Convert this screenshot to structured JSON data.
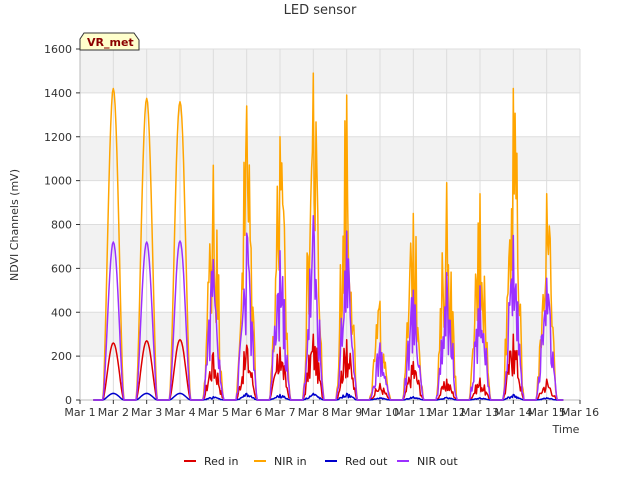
{
  "chart_data": {
    "type": "line",
    "title": "LED sensor",
    "xlabel": "Time",
    "ylabel": "NDVI Channels (mV)",
    "badge": "VR_met",
    "xlim": [
      1,
      16
    ],
    "ylim": [
      0,
      1600
    ],
    "x_ticks": [
      {
        "value": 1,
        "label": "Mar 1"
      },
      {
        "value": 2,
        "label": "Mar 2"
      },
      {
        "value": 3,
        "label": "Mar 3"
      },
      {
        "value": 4,
        "label": "Mar 4"
      },
      {
        "value": 5,
        "label": "Mar 5"
      },
      {
        "value": 6,
        "label": "Mar 6"
      },
      {
        "value": 7,
        "label": "Mar 7"
      },
      {
        "value": 8,
        "label": "Mar 8"
      },
      {
        "value": 9,
        "label": "Mar 9"
      },
      {
        "value": 10,
        "label": "Mar 10"
      },
      {
        "value": 11,
        "label": "Mar 11"
      },
      {
        "value": 12,
        "label": "Mar 12"
      },
      {
        "value": 13,
        "label": "Mar 13"
      },
      {
        "value": 14,
        "label": "Mar 14"
      },
      {
        "value": 15,
        "label": "Mar 15"
      },
      {
        "value": 16,
        "label": "Mar 16"
      }
    ],
    "y_ticks": [
      0,
      200,
      400,
      600,
      800,
      1000,
      1200,
      1400,
      1600
    ],
    "day_centers": [
      2.0,
      3.0,
      4.0,
      5.0,
      6.0,
      7.0,
      8.0,
      9.0,
      10.0,
      11.0,
      12.0,
      13.0,
      14.0,
      15.0
    ],
    "series": [
      {
        "name": "Red in",
        "color": "#dd0000",
        "peaks": [
          260,
          270,
          275,
          215,
          250,
          240,
          300,
          275,
          75,
          175,
          95,
          100,
          300,
          95
        ]
      },
      {
        "name": "NIR in",
        "color": "#ffa500",
        "peaks": [
          1420,
          1375,
          1360,
          1070,
          1340,
          1200,
          1490,
          1390,
          450,
          850,
          990,
          940,
          1420,
          940
        ]
      },
      {
        "name": "Red out",
        "color": "#0000cc",
        "peaks": [
          30,
          30,
          30,
          15,
          30,
          25,
          30,
          30,
          10,
          15,
          12,
          10,
          25,
          10
        ]
      },
      {
        "name": "NIR out",
        "color": "#9b30ff",
        "peaks": [
          720,
          720,
          725,
          640,
          760,
          680,
          840,
          770,
          260,
          500,
          580,
          520,
          750,
          555
        ]
      }
    ]
  }
}
